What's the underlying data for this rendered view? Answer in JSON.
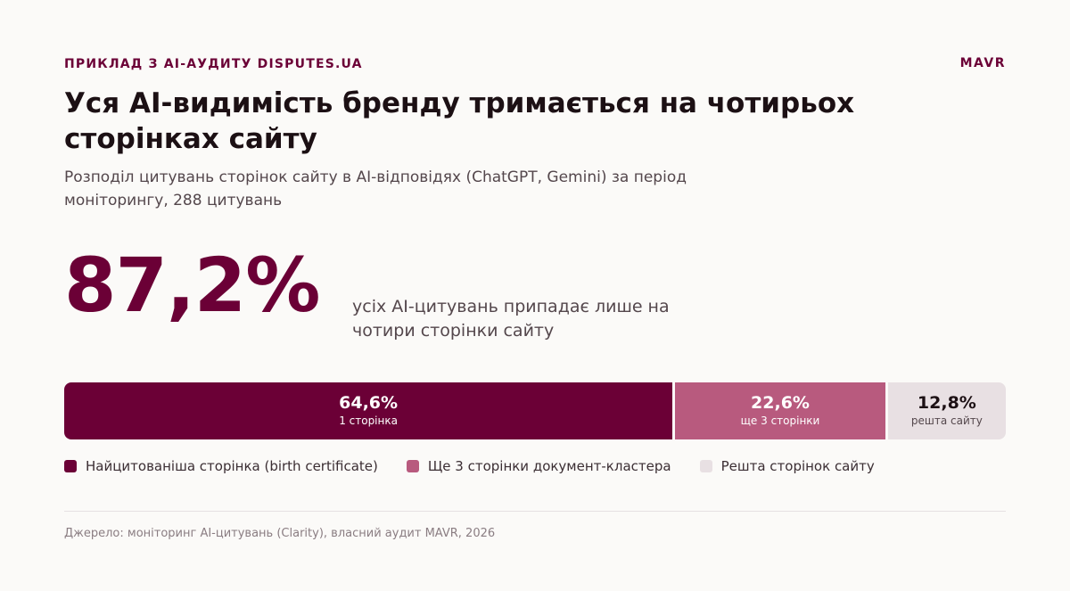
{
  "header": {
    "kicker": "ПРИКЛАД З AI-АУДИТУ DISPUTES.UA",
    "brand": "MAVR",
    "title": "Уся AI-видимість бренду тримається на чотирьох сторінках сайту",
    "subtitle": "Розподіл цитувань сторінок сайту в AI-відповідях (ChatGPT, Gemini) за період моніторингу, 288 цитувань"
  },
  "highlight": {
    "value": "87,2%",
    "caption": "усіх AI-цитувань припадає лише на чотири сторінки сайту"
  },
  "colors": {
    "primary": "#6b0036",
    "secondary": "#b85a7e",
    "muted": "#e8e0e3"
  },
  "chart_data": {
    "type": "bar",
    "orientation": "horizontal-stacked",
    "categories": [
      "1 сторінка",
      "ще 3 сторінки",
      "решта сайту"
    ],
    "values": [
      64.6,
      22.6,
      12.8
    ],
    "value_labels": [
      "64,6%",
      "22,6%",
      "12,8%"
    ],
    "legend": [
      "Найцитованіша сторінка (birth certificate)",
      "Ще 3 сторінки документ-кластера",
      "Решта сторінок сайту"
    ],
    "legend_placement": "bottom-left",
    "title": "",
    "xlabel": "",
    "ylabel": ""
  },
  "footer": {
    "source": "Джерело: моніторинг AI-цитувань (Clarity), власний аудит MAVR, 2026"
  }
}
